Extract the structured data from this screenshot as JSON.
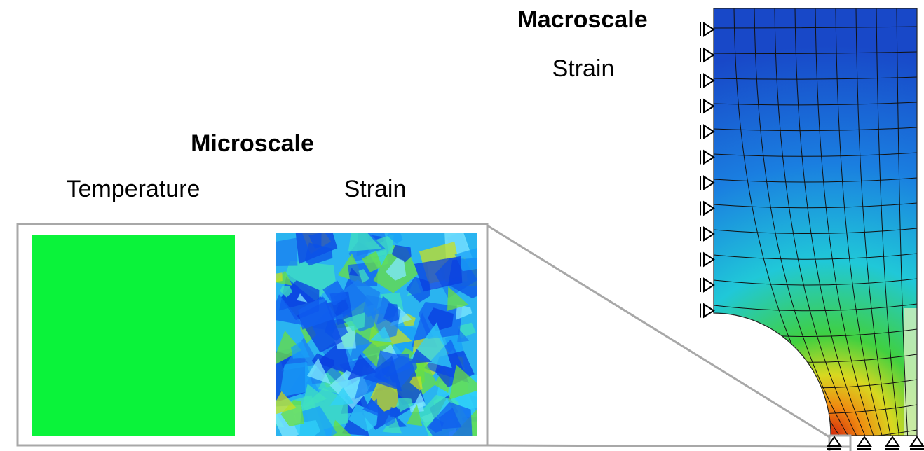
{
  "macroscale": {
    "title": "Macroscale",
    "label": "Strain"
  },
  "microscale": {
    "title": "Microscale",
    "panels": [
      {
        "label": "Temperature"
      },
      {
        "label": "Strain"
      }
    ]
  }
}
